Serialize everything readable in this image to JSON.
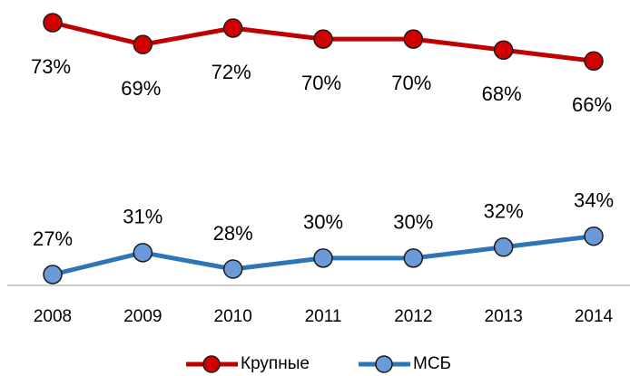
{
  "chart_data": {
    "type": "line",
    "categories": [
      "2008",
      "2009",
      "2010",
      "2011",
      "2012",
      "2013",
      "2014"
    ],
    "series": [
      {
        "name": "Крупные",
        "color": "#c00000",
        "marker_color": "#d00000",
        "values": [
          73,
          69,
          72,
          70,
          70,
          68,
          66
        ],
        "value_labels": [
          "73%",
          "69%",
          "72%",
          "70%",
          "70%",
          "68%",
          "66%"
        ],
        "label_position": "below"
      },
      {
        "name": "МСБ",
        "color": "#2e75b6",
        "marker_color": "#6a9bd8",
        "values": [
          27,
          31,
          28,
          30,
          30,
          32,
          34
        ],
        "value_labels": [
          "27%",
          "31%",
          "28%",
          "30%",
          "30%",
          "32%",
          "34%"
        ],
        "label_position": "above"
      }
    ],
    "legend": "bottom"
  }
}
